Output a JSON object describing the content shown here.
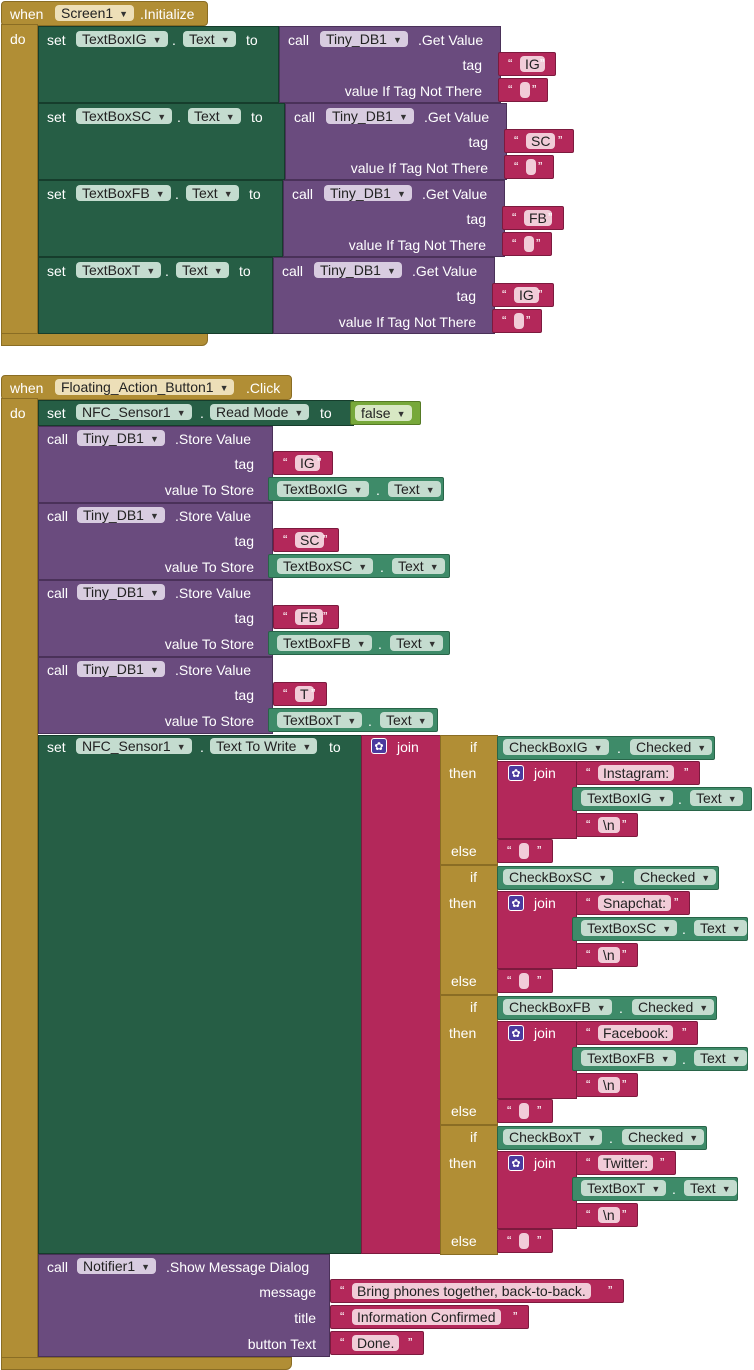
{
  "screen_init": {
    "when": "when",
    "do": "do",
    "component": "Screen1",
    "event": ".Initialize",
    "sets": [
      {
        "set": "set",
        "component": "TextBoxIG",
        "dot": ".",
        "prop": "Text",
        "to": "to",
        "call": "call",
        "db": "Tiny_DB1",
        "method": ".Get Value",
        "tag_label": "tag",
        "tag": "IG",
        "default_label": "value If Tag Not There"
      },
      {
        "set": "set",
        "component": "TextBoxSC",
        "dot": ".",
        "prop": "Text",
        "to": "to",
        "call": "call",
        "db": "Tiny_DB1",
        "method": ".Get Value",
        "tag_label": "tag",
        "tag": "SC",
        "default_label": "value If Tag Not There"
      },
      {
        "set": "set",
        "component": "TextBoxFB",
        "dot": ".",
        "prop": "Text",
        "to": "to",
        "call": "call",
        "db": "Tiny_DB1",
        "method": ".Get Value",
        "tag_label": "tag",
        "tag": "FB",
        "default_label": "value If Tag Not There"
      },
      {
        "set": "set",
        "component": "TextBoxT",
        "dot": ".",
        "prop": "Text",
        "to": "to",
        "call": "call",
        "db": "Tiny_DB1",
        "method": ".Get Value",
        "tag_label": "tag",
        "tag": "IG",
        "default_label": "value If Tag Not There"
      }
    ]
  },
  "fab_click": {
    "when": "when",
    "do": "do",
    "component": "Floating_Action_Button1",
    "event": ".Click",
    "set_nfc": {
      "set": "set",
      "component": "NFC_Sensor1",
      "dot": ".",
      "prop": "Read Mode",
      "to": "to",
      "value": "false"
    },
    "stores": [
      {
        "call": "call",
        "db": "Tiny_DB1",
        "method": ".Store Value",
        "tag_label": "tag",
        "tag": "IG",
        "value_label": "value To Store",
        "component": "TextBoxIG",
        "dot": ".",
        "prop": "Text"
      },
      {
        "call": "call",
        "db": "Tiny_DB1",
        "method": ".Store Value",
        "tag_label": "tag",
        "tag": "SC",
        "value_label": "value To Store",
        "component": "TextBoxSC",
        "dot": ".",
        "prop": "Text"
      },
      {
        "call": "call",
        "db": "Tiny_DB1",
        "method": ".Store Value",
        "tag_label": "tag",
        "tag": "FB",
        "value_label": "value To Store",
        "component": "TextBoxFB",
        "dot": ".",
        "prop": "Text"
      },
      {
        "call": "call",
        "db": "Tiny_DB1",
        "method": ".Store Value",
        "tag_label": "tag",
        "tag": "T",
        "value_label": "value To Store",
        "component": "TextBoxT",
        "dot": ".",
        "prop": "Text"
      }
    ],
    "set_write": {
      "set": "set",
      "component": "NFC_Sensor1",
      "dot": ".",
      "prop": "Text To Write",
      "to": "to",
      "join": "join"
    },
    "ifs": [
      {
        "if": "if",
        "then": "then",
        "else": "else",
        "check": "CheckBoxIG",
        "dot": ".",
        "checked": "Checked",
        "join": "join",
        "prefix": "Instagram: ",
        "textbox": "TextBoxIG",
        "text": "Text",
        "newline": "\\n"
      },
      {
        "if": "if",
        "then": "then",
        "else": "else",
        "check": "CheckBoxSC",
        "dot": ".",
        "checked": "Checked",
        "join": "join",
        "prefix": "Snapchat: ",
        "textbox": "TextBoxSC",
        "text": "Text",
        "newline": "\\n"
      },
      {
        "if": "if",
        "then": "then",
        "else": "else",
        "check": "CheckBoxFB",
        "dot": ".",
        "checked": "Checked",
        "join": "join",
        "prefix": "Facebook: ",
        "textbox": "TextBoxFB",
        "text": "Text",
        "newline": "\\n"
      },
      {
        "if": "if",
        "then": "then",
        "else": "else",
        "check": "CheckBoxT",
        "dot": ".",
        "checked": "Checked",
        "join": "join",
        "prefix": "Twitter: ",
        "textbox": "TextBoxT",
        "text": "Text",
        "newline": "\\n"
      }
    ],
    "notifier": {
      "call": "call",
      "component": "Notifier1",
      "method": ".Show Message Dialog",
      "message_label": "message",
      "message": "Bring phones together, back-to-back.",
      "title_label": "title",
      "title": "Information Confirmed",
      "button_label": "button Text",
      "button": "Done."
    }
  },
  "glyphs": {
    "open_quote": "“",
    "close_quote": "”",
    "dropdown_arrow": "▼",
    "gear": "✿"
  },
  "colors": {
    "event": "#b18e35",
    "setter": "#265e45",
    "procedure": "#6a4b7e",
    "text": "#b3285a",
    "component": "#3e8b69",
    "logic": "#77a83a"
  }
}
